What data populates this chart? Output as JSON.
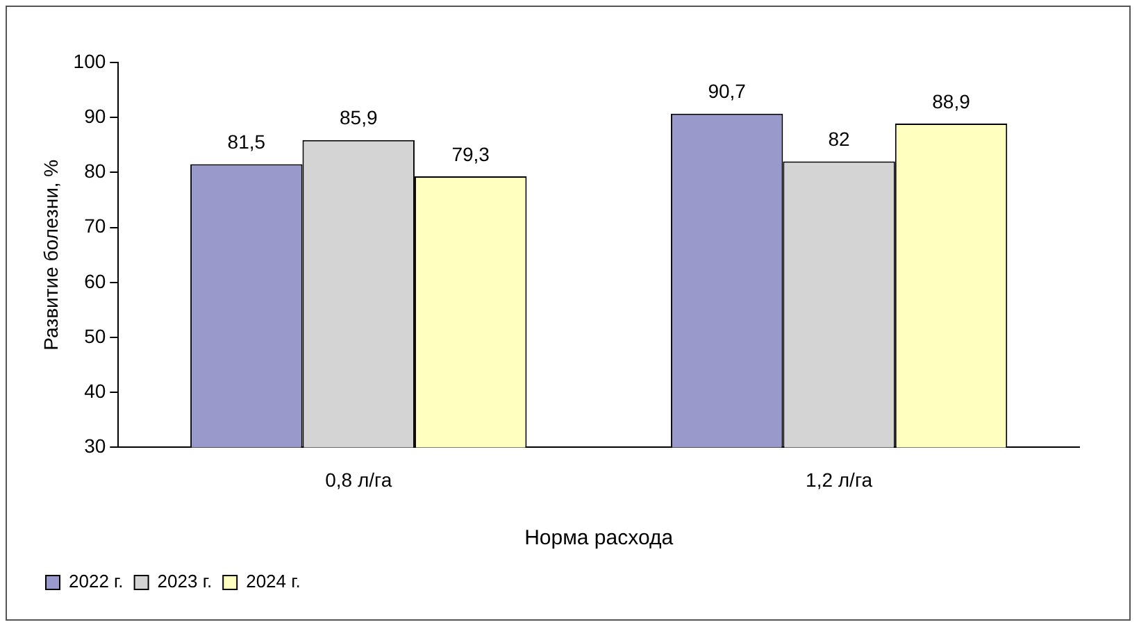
{
  "chart_data": {
    "type": "bar",
    "xlabel": "Норма расхода",
    "ylabel": "Развитие болезни, %",
    "categories": [
      "0,8 л/га",
      "1,2 л/га"
    ],
    "series": [
      {
        "name": "2022 г.",
        "color": "#9999cc",
        "values": [
          81.5,
          90.7
        ],
        "value_labels": [
          "81,5",
          "90,7"
        ]
      },
      {
        "name": "2023 г.",
        "color": "#d4d4d4",
        "values": [
          85.9,
          82
        ],
        "value_labels": [
          "85,9",
          "82"
        ]
      },
      {
        "name": "2024 г.",
        "color": "#ffffc0",
        "values": [
          79.3,
          88.9
        ],
        "value_labels": [
          "79,3",
          "88,9"
        ]
      }
    ],
    "ylim": [
      30,
      100
    ],
    "yticks": [
      30,
      40,
      50,
      60,
      70,
      80,
      90,
      100
    ],
    "grid": false,
    "legend": "bottom left"
  }
}
